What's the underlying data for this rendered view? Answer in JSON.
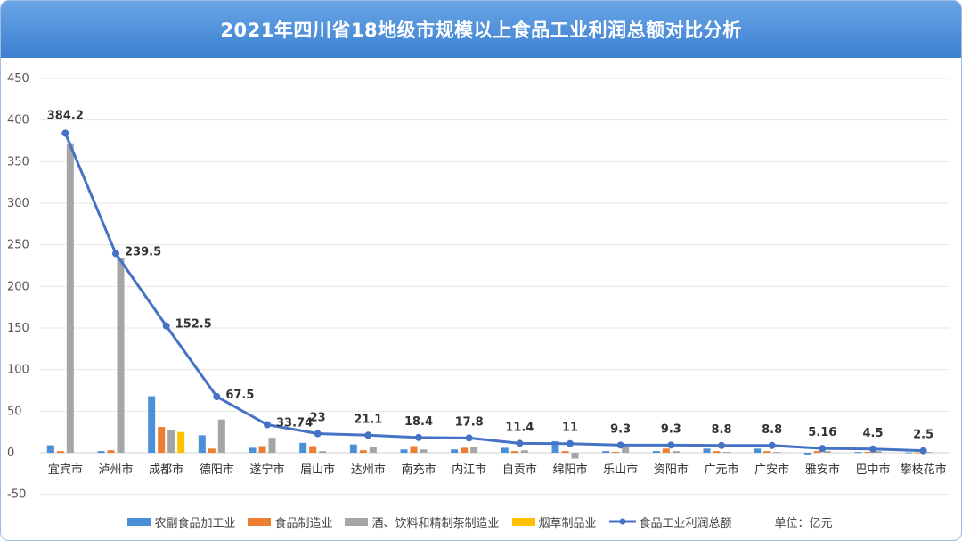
{
  "chart_data": {
    "type": "bar",
    "title": "2021年四川省18地级市规模以上食品工业利润总额对比分析",
    "categories": [
      "宜宾市",
      "泸州市",
      "成都市",
      "德阳市",
      "遂宁市",
      "眉山市",
      "达州市",
      "南充市",
      "内江市",
      "自贡市",
      "绵阳市",
      "乐山市",
      "资阳市",
      "广元市",
      "广安市",
      "雅安市",
      "巴中市",
      "攀枝花市"
    ],
    "ylim": [
      -50,
      450
    ],
    "yticks": [
      -50,
      0,
      50,
      100,
      150,
      200,
      250,
      300,
      350,
      400,
      450
    ],
    "grid": true,
    "series": [
      {
        "name": "农副食品加工业",
        "type": "bar",
        "color": "#4a90d9",
        "values": [
          9,
          2,
          68,
          21,
          6,
          12,
          10,
          4,
          4,
          6,
          14,
          2,
          2,
          5,
          5,
          -2,
          1,
          0.5
        ]
      },
      {
        "name": "食品制造业",
        "type": "bar",
        "color": "#ed7d31",
        "values": [
          2,
          3,
          31,
          5,
          8,
          8,
          3,
          8,
          6,
          2,
          2,
          1,
          5,
          2,
          2,
          2,
          1,
          0.5
        ]
      },
      {
        "name": "酒、饮料和精制茶制造业",
        "type": "bar",
        "color": "#a5a5a5",
        "values": [
          371,
          234,
          27,
          40,
          18,
          2,
          7,
          4,
          7,
          3,
          -7,
          7,
          2,
          1,
          1,
          2,
          2,
          1
        ]
      },
      {
        "name": "烟草制品业",
        "type": "bar",
        "color": "#ffc000",
        "values": [
          0,
          0,
          25,
          0,
          0,
          0,
          0,
          0,
          0,
          0,
          0,
          0,
          0,
          0,
          0,
          0,
          0,
          0
        ]
      },
      {
        "name": "食品工业利润总额",
        "type": "line",
        "color": "#4472c4",
        "values": [
          384.2,
          239.5,
          152.5,
          67.5,
          33.74,
          23,
          21.1,
          18.4,
          17.8,
          11.4,
          11,
          9.3,
          9.3,
          8.8,
          8.8,
          5.16,
          4.5,
          2.5
        ]
      }
    ],
    "data_labels": [
      "384.2",
      "239.5",
      "152.5",
      "67.5",
      "33.74",
      "23",
      "21.1",
      "18.4",
      "17.8",
      "11.4",
      "11",
      "9.3",
      "9.3",
      "8.8",
      "8.8",
      "5.16",
      "4.5",
      "2.5"
    ],
    "unit_note": "单位：亿元",
    "legend_position": "bottom"
  }
}
